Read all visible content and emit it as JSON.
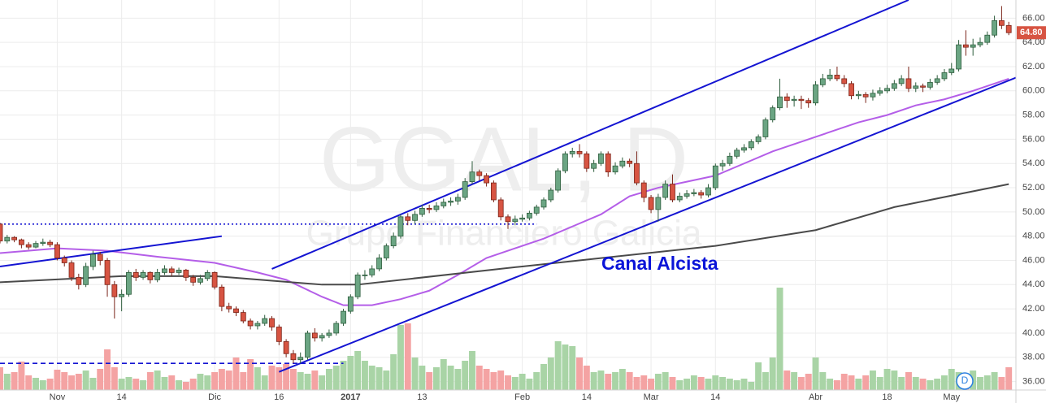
{
  "chart_data": {
    "type": "candlestick",
    "watermark": "GGAL, D",
    "watermark_subtitle": "Grupo Financiero Galicia",
    "annotation": "Canal Alcista",
    "marker_label": "D",
    "up_color": "#6ba583",
    "down_color": "#d75442",
    "volume_up_color": "#a9d4a6",
    "volume_down_color": "#f4a3a3",
    "grid": true,
    "xlim": [
      0,
      142
    ],
    "ylim": [
      35.3,
      67.5
    ],
    "yticks": [
      {
        "value": 36,
        "label": "36.00"
      },
      {
        "value": 38,
        "label": "38.00"
      },
      {
        "value": 40,
        "label": "40.00"
      },
      {
        "value": 42,
        "label": "42.00"
      },
      {
        "value": 44,
        "label": "44.00"
      },
      {
        "value": 46,
        "label": "46.00"
      },
      {
        "value": 48,
        "label": "48.00"
      },
      {
        "value": 50,
        "label": "50.00"
      },
      {
        "value": 52,
        "label": "52.00"
      },
      {
        "value": 54,
        "label": "54.00"
      },
      {
        "value": 56,
        "label": "56.00"
      },
      {
        "value": 58,
        "label": "58.00"
      },
      {
        "value": 60,
        "label": "60.00"
      },
      {
        "value": 62,
        "label": "62.00"
      },
      {
        "value": 64,
        "label": "64.00"
      },
      {
        "value": 66,
        "label": "66.00"
      }
    ],
    "xticks": [
      {
        "value": 8,
        "label": "Nov"
      },
      {
        "value": 17,
        "label": "14"
      },
      {
        "value": 30,
        "label": "Dic"
      },
      {
        "value": 39,
        "label": "16"
      },
      {
        "value": 49,
        "label": "2017"
      },
      {
        "value": 59,
        "label": "13"
      },
      {
        "value": 73,
        "label": "Feb"
      },
      {
        "value": 82,
        "label": "14"
      },
      {
        "value": 91,
        "label": "Mar"
      },
      {
        "value": 100,
        "label": "14"
      },
      {
        "value": 114,
        "label": "Abr"
      },
      {
        "value": 124,
        "label": "18"
      },
      {
        "value": 133,
        "label": "May"
      }
    ],
    "last_price": {
      "value": 64.8,
      "label": "64.80"
    },
    "candles": [
      [
        49.0,
        49.1,
        47.4,
        47.6
      ],
      [
        47.6,
        48.1,
        47.4,
        47.9
      ],
      [
        47.9,
        48.0,
        47.5,
        47.7
      ],
      [
        47.7,
        47.8,
        47.0,
        47.3
      ],
      [
        47.3,
        47.5,
        46.9,
        47.1
      ],
      [
        47.1,
        47.6,
        47.0,
        47.4
      ],
      [
        47.4,
        47.8,
        47.2,
        47.5
      ],
      [
        47.5,
        47.7,
        47.1,
        47.3
      ],
      [
        47.3,
        47.5,
        46.0,
        46.2
      ],
      [
        46.2,
        46.4,
        45.5,
        45.8
      ],
      [
        45.8,
        46.0,
        44.3,
        44.6
      ],
      [
        44.6,
        44.9,
        43.6,
        44.0
      ],
      [
        44.0,
        45.8,
        43.8,
        45.5
      ],
      [
        45.5,
        46.8,
        45.2,
        46.5
      ],
      [
        46.5,
        46.7,
        45.6,
        46.0
      ],
      [
        46.0,
        46.2,
        43.0,
        44.0
      ],
      [
        44.0,
        44.3,
        41.2,
        43.0
      ],
      [
        43.0,
        43.6,
        41.8,
        43.2
      ],
      [
        43.2,
        45.2,
        43.0,
        45.0
      ],
      [
        45.0,
        45.3,
        44.3,
        44.6
      ],
      [
        44.6,
        45.2,
        44.4,
        45.0
      ],
      [
        45.0,
        45.1,
        44.1,
        44.4
      ],
      [
        44.4,
        45.3,
        44.2,
        45.0
      ],
      [
        45.0,
        45.6,
        44.8,
        45.3
      ],
      [
        45.3,
        45.5,
        44.7,
        45.0
      ],
      [
        45.0,
        45.4,
        44.8,
        45.2
      ],
      [
        45.2,
        45.3,
        44.3,
        44.6
      ],
      [
        44.6,
        44.8,
        43.9,
        44.2
      ],
      [
        44.2,
        44.8,
        44.0,
        44.5
      ],
      [
        44.5,
        45.2,
        44.3,
        45.0
      ],
      [
        45.0,
        45.1,
        43.6,
        43.8
      ],
      [
        43.8,
        44.0,
        41.8,
        42.2
      ],
      [
        42.2,
        42.5,
        41.7,
        42.0
      ],
      [
        42.0,
        42.2,
        41.4,
        41.7
      ],
      [
        41.7,
        41.9,
        40.8,
        41.0
      ],
      [
        41.0,
        41.2,
        40.3,
        40.6
      ],
      [
        40.6,
        41.0,
        40.3,
        40.8
      ],
      [
        40.8,
        41.5,
        40.6,
        41.2
      ],
      [
        41.2,
        41.4,
        40.2,
        40.5
      ],
      [
        40.5,
        40.7,
        39.0,
        39.3
      ],
      [
        39.3,
        39.5,
        38.0,
        38.3
      ],
      [
        38.3,
        38.6,
        37.5,
        37.8
      ],
      [
        37.8,
        38.4,
        37.5,
        38.0
      ],
      [
        38.0,
        40.2,
        37.8,
        40.0
      ],
      [
        40.0,
        40.4,
        39.3,
        39.6
      ],
      [
        39.6,
        40.0,
        39.3,
        39.8
      ],
      [
        39.8,
        40.3,
        39.6,
        40.0
      ],
      [
        40.0,
        41.0,
        39.8,
        40.8
      ],
      [
        40.8,
        42.0,
        40.6,
        41.8
      ],
      [
        41.8,
        43.2,
        41.6,
        43.0
      ],
      [
        43.0,
        45.0,
        42.8,
        44.8
      ],
      [
        44.8,
        45.2,
        44.4,
        44.8
      ],
      [
        44.8,
        45.6,
        44.6,
        45.3
      ],
      [
        45.3,
        46.5,
        45.1,
        46.2
      ],
      [
        46.2,
        47.4,
        46.0,
        47.2
      ],
      [
        47.2,
        48.3,
        47.0,
        48.0
      ],
      [
        48.0,
        49.8,
        47.8,
        49.6
      ],
      [
        49.6,
        49.9,
        48.9,
        49.3
      ],
      [
        49.3,
        50.1,
        49.0,
        49.8
      ],
      [
        49.8,
        50.6,
        49.6,
        50.3
      ],
      [
        50.3,
        50.6,
        49.9,
        50.2
      ],
      [
        50.2,
        50.8,
        50.0,
        50.5
      ],
      [
        50.5,
        51.1,
        50.3,
        50.8
      ],
      [
        50.8,
        51.2,
        50.5,
        50.9
      ],
      [
        50.9,
        51.5,
        50.6,
        51.2
      ],
      [
        51.2,
        52.8,
        51.0,
        52.5
      ],
      [
        52.5,
        54.2,
        52.3,
        53.3
      ],
      [
        53.3,
        53.5,
        52.6,
        53.0
      ],
      [
        53.0,
        53.2,
        52.1,
        52.4
      ],
      [
        52.4,
        52.6,
        50.8,
        51.0
      ],
      [
        51.0,
        51.2,
        49.3,
        49.6
      ],
      [
        49.6,
        49.8,
        48.6,
        49.2
      ],
      [
        49.2,
        49.7,
        48.9,
        49.4
      ],
      [
        49.4,
        49.8,
        49.2,
        49.5
      ],
      [
        49.5,
        50.1,
        49.3,
        49.9
      ],
      [
        49.9,
        50.6,
        49.7,
        50.4
      ],
      [
        50.4,
        51.2,
        50.2,
        51.0
      ],
      [
        51.0,
        52.0,
        50.8,
        51.8
      ],
      [
        51.8,
        53.6,
        51.6,
        53.4
      ],
      [
        53.4,
        55.0,
        53.2,
        54.8
      ],
      [
        54.8,
        55.3,
        54.5,
        55.0
      ],
      [
        55.0,
        55.6,
        54.5,
        54.8
      ],
      [
        54.8,
        55.0,
        53.3,
        53.6
      ],
      [
        53.6,
        54.3,
        53.3,
        54.0
      ],
      [
        54.0,
        55.0,
        53.8,
        54.8
      ],
      [
        54.8,
        55.0,
        52.9,
        53.3
      ],
      [
        53.3,
        54.1,
        53.1,
        53.8
      ],
      [
        53.8,
        54.5,
        53.6,
        54.2
      ],
      [
        54.2,
        54.4,
        53.7,
        54.0
      ],
      [
        54.0,
        55.0,
        52.2,
        52.4
      ],
      [
        52.4,
        52.6,
        50.8,
        51.2
      ],
      [
        51.2,
        51.4,
        49.9,
        50.2
      ],
      [
        50.2,
        51.5,
        49.2,
        51.2
      ],
      [
        51.2,
        52.6,
        51.0,
        52.3
      ],
      [
        52.3,
        53.1,
        50.8,
        51.0
      ],
      [
        51.0,
        51.6,
        50.8,
        51.3
      ],
      [
        51.3,
        51.8,
        51.1,
        51.5
      ],
      [
        51.5,
        51.9,
        51.3,
        51.6
      ],
      [
        51.6,
        51.8,
        51.1,
        51.4
      ],
      [
        51.4,
        52.3,
        51.2,
        52.0
      ],
      [
        52.0,
        54.0,
        51.8,
        53.8
      ],
      [
        53.8,
        54.3,
        53.4,
        54.0
      ],
      [
        54.0,
        54.9,
        53.8,
        54.6
      ],
      [
        54.6,
        55.3,
        54.4,
        55.1
      ],
      [
        55.1,
        55.6,
        54.9,
        55.3
      ],
      [
        55.3,
        56.0,
        55.1,
        55.8
      ],
      [
        55.8,
        56.4,
        55.6,
        56.2
      ],
      [
        56.2,
        57.8,
        56.0,
        57.6
      ],
      [
        57.6,
        58.8,
        57.4,
        58.6
      ],
      [
        58.6,
        61.0,
        58.4,
        59.5
      ],
      [
        59.5,
        59.8,
        58.6,
        59.2
      ],
      [
        59.2,
        59.6,
        58.7,
        59.3
      ],
      [
        59.3,
        59.6,
        58.5,
        59.2
      ],
      [
        59.2,
        59.4,
        58.6,
        59.0
      ],
      [
        59.0,
        60.8,
        58.8,
        60.5
      ],
      [
        60.5,
        61.4,
        60.3,
        61.0
      ],
      [
        61.0,
        61.8,
        60.8,
        61.3
      ],
      [
        61.3,
        62.0,
        60.8,
        61.0
      ],
      [
        61.0,
        61.3,
        60.3,
        60.6
      ],
      [
        60.6,
        60.8,
        59.3,
        59.6
      ],
      [
        59.6,
        60.0,
        59.3,
        59.7
      ],
      [
        59.7,
        59.9,
        59.0,
        59.5
      ],
      [
        59.5,
        60.1,
        59.2,
        59.8
      ],
      [
        59.8,
        60.3,
        59.6,
        60.0
      ],
      [
        60.0,
        60.5,
        59.8,
        60.2
      ],
      [
        60.2,
        60.9,
        60.0,
        60.6
      ],
      [
        60.6,
        61.3,
        60.4,
        61.0
      ],
      [
        61.0,
        62.0,
        59.9,
        60.2
      ],
      [
        60.2,
        60.7,
        59.9,
        60.4
      ],
      [
        60.4,
        60.6,
        59.9,
        60.3
      ],
      [
        60.3,
        61.0,
        60.1,
        60.7
      ],
      [
        60.7,
        61.3,
        60.5,
        61.0
      ],
      [
        61.0,
        61.8,
        60.8,
        61.5
      ],
      [
        61.5,
        62.3,
        61.3,
        61.8
      ],
      [
        61.8,
        64.2,
        61.6,
        63.8
      ],
      [
        63.8,
        65.0,
        62.9,
        63.6
      ],
      [
        63.6,
        64.3,
        62.9,
        63.8
      ],
      [
        63.8,
        64.4,
        63.6,
        64.0
      ],
      [
        64.0,
        64.9,
        63.8,
        64.6
      ],
      [
        64.6,
        66.2,
        64.4,
        65.8
      ],
      [
        65.8,
        67.0,
        65.1,
        65.4
      ],
      [
        65.4,
        65.7,
        64.6,
        64.8
      ]
    ],
    "volume": [
      28,
      20,
      22,
      35,
      18,
      15,
      12,
      14,
      25,
      22,
      18,
      20,
      24,
      15,
      26,
      50,
      28,
      14,
      16,
      14,
      12,
      22,
      24,
      16,
      18,
      12,
      10,
      14,
      20,
      18,
      22,
      26,
      24,
      40,
      22,
      38,
      28,
      18,
      30,
      28,
      32,
      26,
      22,
      20,
      24,
      18,
      26,
      30,
      36,
      42,
      48,
      36,
      30,
      28,
      24,
      44,
      80,
      82,
      40,
      30,
      22,
      28,
      38,
      30,
      26,
      36,
      48,
      30,
      26,
      22,
      24,
      18,
      16,
      20,
      14,
      22,
      32,
      40,
      60,
      56,
      54,
      40,
      30,
      22,
      24,
      20,
      22,
      26,
      22,
      16,
      18,
      14,
      20,
      22,
      16,
      12,
      14,
      18,
      16,
      14,
      18,
      16,
      14,
      12,
      14,
      10,
      34,
      22,
      40,
      126,
      24,
      22,
      16,
      20,
      40,
      22,
      14,
      12,
      20,
      18,
      14,
      18,
      24,
      16,
      26,
      24,
      16,
      22,
      16,
      14,
      12,
      14,
      18,
      26,
      22,
      20,
      24,
      16,
      18,
      22,
      16,
      28
    ],
    "series": [
      {
        "color": "#b45ee8",
        "x": [
          0,
          8,
          15,
          22,
          30,
          36,
          40,
          45,
          48,
          52,
          56,
          60,
          64,
          68,
          72,
          76,
          80,
          84,
          88,
          92,
          96,
          100,
          104,
          108,
          112,
          116,
          120,
          124,
          128,
          132,
          136,
          141
        ],
        "values": [
          46.6,
          47.0,
          46.8,
          46.3,
          45.8,
          45.0,
          44.4,
          43.0,
          42.3,
          42.3,
          42.8,
          43.5,
          44.8,
          46.2,
          47.0,
          47.8,
          48.8,
          49.8,
          51.3,
          52.0,
          52.5,
          53.0,
          54.0,
          55.0,
          55.8,
          56.6,
          57.4,
          58.0,
          58.8,
          59.3,
          60.0,
          61.0
        ]
      },
      {
        "color": "#4a4a4a",
        "x": [
          0,
          17,
          30,
          45,
          50,
          73,
          100,
          114,
          125,
          141
        ],
        "values": [
          44.2,
          44.7,
          44.7,
          44.0,
          44.0,
          45.5,
          47.2,
          48.5,
          50.4,
          52.3
        ]
      }
    ],
    "trendlines": [
      {
        "color": "#1414d2",
        "style": "solid",
        "points": [
          [
            0,
            45.5
          ],
          [
            31,
            48.0
          ]
        ]
      },
      {
        "color": "#1414d2",
        "style": "solid",
        "points": [
          [
            38,
            45.3
          ],
          [
            127,
            67.5
          ]
        ]
      },
      {
        "color": "#1414d2",
        "style": "solid",
        "points": [
          [
            39,
            36.8
          ],
          [
            145,
            61.8
          ]
        ]
      },
      {
        "color": "#1414d2",
        "style": "dotted",
        "points": [
          [
            0,
            49.0
          ],
          [
            75,
            49.0
          ]
        ]
      },
      {
        "color": "#1414d2",
        "style": "dashed",
        "points": [
          [
            0,
            37.5
          ],
          [
            48,
            37.5
          ]
        ]
      }
    ]
  }
}
